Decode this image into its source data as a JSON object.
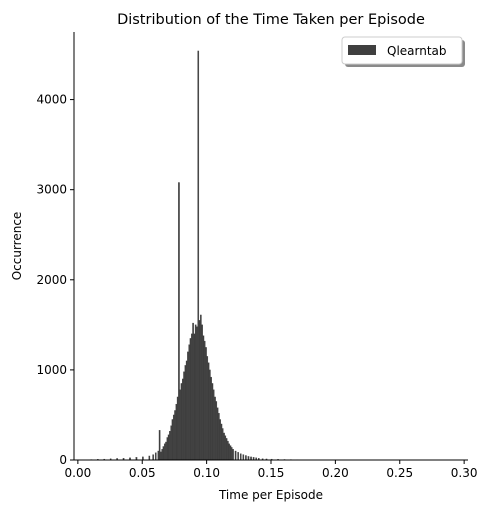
{
  "chart_data": {
    "type": "bar",
    "title": "Distribution of the Time Taken per Episode",
    "xlabel": "Time per Episode",
    "ylabel": "Occurrence",
    "xlim": [
      -0.003,
      0.303
    ],
    "ylim": [
      0,
      4750
    ],
    "xticks": [
      0.0,
      0.05,
      0.1,
      0.15,
      0.2,
      0.25,
      0.3
    ],
    "xtick_labels": [
      "0.00",
      "0.05",
      "0.10",
      "0.15",
      "0.20",
      "0.25",
      "0.30"
    ],
    "yticks": [
      0,
      1000,
      2000,
      3000,
      4000
    ],
    "ytick_labels": [
      "0",
      "1000",
      "2000",
      "3000",
      "4000"
    ],
    "grid": false,
    "legend_position": "top-right",
    "bin_width": 0.001,
    "series": [
      {
        "name": "Qlearntab",
        "color": "#3f3f3f",
        "bin_starts": [
          0.01,
          0.015,
          0.02,
          0.025,
          0.03,
          0.035,
          0.04,
          0.045,
          0.05,
          0.055,
          0.058,
          0.06,
          0.062,
          0.063,
          0.064,
          0.065,
          0.066,
          0.067,
          0.068,
          0.069,
          0.07,
          0.071,
          0.072,
          0.073,
          0.074,
          0.075,
          0.076,
          0.077,
          0.078,
          0.079,
          0.08,
          0.081,
          0.082,
          0.083,
          0.084,
          0.085,
          0.086,
          0.087,
          0.088,
          0.089,
          0.09,
          0.091,
          0.092,
          0.093,
          0.094,
          0.095,
          0.096,
          0.097,
          0.098,
          0.099,
          0.1,
          0.101,
          0.102,
          0.103,
          0.104,
          0.105,
          0.106,
          0.107,
          0.108,
          0.109,
          0.11,
          0.111,
          0.112,
          0.113,
          0.114,
          0.115,
          0.116,
          0.117,
          0.118,
          0.119,
          0.12,
          0.122,
          0.124,
          0.126,
          0.128,
          0.13,
          0.132,
          0.134,
          0.136,
          0.138,
          0.14,
          0.143,
          0.146,
          0.15,
          0.155,
          0.16,
          0.165,
          0.17,
          0.175,
          0.18,
          0.185,
          0.19,
          0.2,
          0.21,
          0.22,
          0.24,
          0.26,
          0.28
        ],
        "values": [
          5,
          8,
          10,
          15,
          18,
          20,
          25,
          30,
          35,
          45,
          60,
          80,
          100,
          330,
          90,
          120,
          150,
          180,
          200,
          250,
          280,
          320,
          380,
          450,
          500,
          550,
          620,
          700,
          3080,
          780,
          850,
          900,
          980,
          1050,
          1100,
          1200,
          1280,
          1350,
          1400,
          1520,
          1400,
          1500,
          1480,
          4540,
          1550,
          1610,
          1500,
          1380,
          1320,
          1250,
          1150,
          1080,
          1000,
          920,
          850,
          780,
          700,
          650,
          580,
          520,
          450,
          400,
          350,
          300,
          270,
          240,
          210,
          180,
          160,
          140,
          120,
          100,
          85,
          70,
          60,
          50,
          40,
          35,
          30,
          25,
          20,
          15,
          12,
          10,
          8,
          6,
          5,
          4,
          3,
          3,
          2,
          2,
          1,
          1,
          1,
          1,
          1,
          1
        ]
      }
    ]
  }
}
